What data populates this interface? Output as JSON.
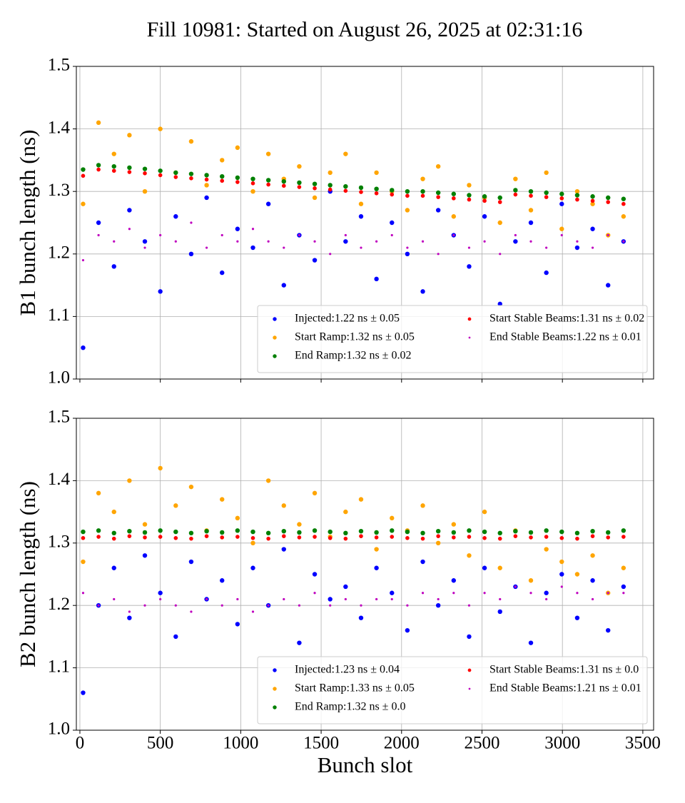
{
  "title": "Fill 10981: Started on August 26, 2025 at 02:31:16",
  "chart_data": [
    {
      "type": "scatter",
      "ylabel": "B1 bunch length (ns)",
      "xlim": [
        -22,
        3567
      ],
      "ylim": [
        1.0,
        1.5
      ],
      "xticks": [
        0,
        500,
        1000,
        1500,
        2000,
        2500,
        3000,
        3500
      ],
      "yticks": [
        {
          "value": 1.0,
          "label": "1.0"
        },
        1.1,
        1.2,
        1.3,
        1.4,
        1.5
      ],
      "grid": true,
      "legend": "lower right",
      "legend_columns": 2,
      "x": [
        20,
        116,
        212,
        308,
        404,
        500,
        596,
        692,
        788,
        884,
        980,
        1076,
        1172,
        1268,
        1364,
        1460,
        1556,
        1652,
        1748,
        1844,
        1940,
        2036,
        2132,
        2228,
        2324,
        2420,
        2516,
        2612,
        2708,
        2804,
        2900,
        2996,
        3092,
        3188,
        3284,
        3380
      ],
      "series": [
        {
          "name": "Injected:1.22 ns ± 0.05",
          "color": "#0000ff",
          "marker_size": 3.2,
          "values": [
            1.05,
            1.25,
            1.18,
            1.27,
            1.22,
            1.14,
            1.26,
            1.2,
            1.29,
            1.17,
            1.24,
            1.21,
            1.28,
            1.15,
            1.23,
            1.19,
            1.3,
            1.22,
            1.26,
            1.16,
            1.25,
            1.2,
            1.14,
            1.27,
            1.23,
            1.18,
            1.26,
            1.12,
            1.22,
            1.25,
            1.17,
            1.28,
            1.21,
            1.24,
            1.15,
            1.22
          ]
        },
        {
          "name": "Start Ramp:1.32 ns ± 0.05",
          "color": "#ffa500",
          "marker_size": 3.2,
          "values": [
            1.28,
            1.41,
            1.36,
            1.39,
            1.3,
            1.4,
            1.33,
            1.38,
            1.31,
            1.35,
            1.37,
            1.3,
            1.36,
            1.32,
            1.34,
            1.29,
            1.33,
            1.36,
            1.28,
            1.33,
            1.3,
            1.27,
            1.32,
            1.34,
            1.26,
            1.31,
            1.29,
            1.25,
            1.32,
            1.27,
            1.33,
            1.24,
            1.3,
            1.28,
            1.23,
            1.26
          ]
        },
        {
          "name": "End Ramp:1.32 ns ± 0.02",
          "color": "#008000",
          "marker_size": 3.2,
          "values": [
            1.335,
            1.342,
            1.34,
            1.338,
            1.336,
            1.333,
            1.33,
            1.328,
            1.326,
            1.324,
            1.322,
            1.32,
            1.318,
            1.316,
            1.314,
            1.312,
            1.31,
            1.308,
            1.306,
            1.304,
            1.302,
            1.3,
            1.3,
            1.298,
            1.296,
            1.294,
            1.292,
            1.29,
            1.302,
            1.3,
            1.298,
            1.296,
            1.294,
            1.292,
            1.29,
            1.288
          ]
        },
        {
          "name": "Start Stable Beams:1.31 ns ± 0.02",
          "color": "#ff0000",
          "marker_size": 2.8,
          "values": [
            1.325,
            1.335,
            1.333,
            1.331,
            1.329,
            1.326,
            1.323,
            1.321,
            1.319,
            1.317,
            1.315,
            1.313,
            1.311,
            1.309,
            1.307,
            1.305,
            1.303,
            1.301,
            1.299,
            1.297,
            1.295,
            1.293,
            1.293,
            1.291,
            1.289,
            1.287,
            1.285,
            1.283,
            1.295,
            1.293,
            1.291,
            1.289,
            1.287,
            1.285,
            1.283,
            1.28
          ]
        },
        {
          "name": "End Stable Beams:1.22 ns ± 0.01",
          "color": "#bf00bf",
          "marker_size": 1.6,
          "values": [
            1.19,
            1.23,
            1.22,
            1.24,
            1.21,
            1.23,
            1.22,
            1.25,
            1.21,
            1.23,
            1.22,
            1.24,
            1.22,
            1.21,
            1.23,
            1.22,
            1.2,
            1.23,
            1.21,
            1.22,
            1.23,
            1.21,
            1.22,
            1.2,
            1.23,
            1.21,
            1.22,
            1.2,
            1.23,
            1.22,
            1.21,
            1.23,
            1.22,
            1.21,
            1.23,
            1.22
          ]
        }
      ]
    },
    {
      "type": "scatter",
      "ylabel": "B2 bunch length (ns)",
      "xlabel": "Bunch slot",
      "xlim": [
        -22,
        3567
      ],
      "ylim": [
        1.0,
        1.5
      ],
      "xticks": [
        0,
        500,
        1000,
        1500,
        2000,
        2500,
        3000,
        3500
      ],
      "yticks": [
        {
          "value": 1.0,
          "label": "1.0"
        },
        1.1,
        1.2,
        1.3,
        1.4,
        1.5
      ],
      "grid": true,
      "legend": "lower right",
      "legend_columns": 2,
      "x": [
        20,
        116,
        212,
        308,
        404,
        500,
        596,
        692,
        788,
        884,
        980,
        1076,
        1172,
        1268,
        1364,
        1460,
        1556,
        1652,
        1748,
        1844,
        1940,
        2036,
        2132,
        2228,
        2324,
        2420,
        2516,
        2612,
        2708,
        2804,
        2900,
        2996,
        3092,
        3188,
        3284,
        3380
      ],
      "series": [
        {
          "name": "Injected:1.23 ns ± 0.04",
          "color": "#0000ff",
          "marker_size": 3.2,
          "values": [
            1.06,
            1.2,
            1.26,
            1.18,
            1.28,
            1.22,
            1.15,
            1.27,
            1.21,
            1.24,
            1.17,
            1.26,
            1.2,
            1.29,
            1.14,
            1.25,
            1.21,
            1.23,
            1.18,
            1.26,
            1.22,
            1.16,
            1.27,
            1.2,
            1.24,
            1.15,
            1.26,
            1.19,
            1.23,
            1.14,
            1.22,
            1.25,
            1.18,
            1.24,
            1.16,
            1.23
          ]
        },
        {
          "name": "Start Ramp:1.33 ns ± 0.05",
          "color": "#ffa500",
          "marker_size": 3.2,
          "values": [
            1.27,
            1.38,
            1.35,
            1.4,
            1.33,
            1.42,
            1.36,
            1.39,
            1.32,
            1.37,
            1.34,
            1.3,
            1.4,
            1.36,
            1.33,
            1.38,
            1.31,
            1.35,
            1.37,
            1.29,
            1.34,
            1.32,
            1.36,
            1.3,
            1.33,
            1.28,
            1.35,
            1.26,
            1.32,
            1.24,
            1.29,
            1.27,
            1.25,
            1.28,
            1.22,
            1.26
          ]
        },
        {
          "name": "End Ramp:1.32 ns ± 0.0",
          "color": "#008000",
          "marker_size": 3.2,
          "values": [
            1.318,
            1.32,
            1.316,
            1.319,
            1.317,
            1.32,
            1.318,
            1.316,
            1.319,
            1.317,
            1.32,
            1.318,
            1.316,
            1.319,
            1.317,
            1.32,
            1.318,
            1.316,
            1.319,
            1.317,
            1.32,
            1.318,
            1.316,
            1.319,
            1.317,
            1.32,
            1.318,
            1.316,
            1.319,
            1.317,
            1.32,
            1.318,
            1.316,
            1.319,
            1.317,
            1.32
          ]
        },
        {
          "name": "Start Stable Beams:1.31 ns ± 0.0",
          "color": "#ff0000",
          "marker_size": 2.8,
          "values": [
            1.308,
            1.31,
            1.307,
            1.311,
            1.309,
            1.31,
            1.308,
            1.307,
            1.311,
            1.309,
            1.31,
            1.308,
            1.307,
            1.311,
            1.309,
            1.31,
            1.308,
            1.307,
            1.311,
            1.309,
            1.31,
            1.308,
            1.307,
            1.311,
            1.309,
            1.31,
            1.308,
            1.307,
            1.311,
            1.309,
            1.31,
            1.308,
            1.307,
            1.311,
            1.309,
            1.31
          ]
        },
        {
          "name": "End Stable Beams:1.21 ns ± 0.01",
          "color": "#bf00bf",
          "marker_size": 1.6,
          "values": [
            1.22,
            1.2,
            1.21,
            1.19,
            1.2,
            1.21,
            1.2,
            1.19,
            1.21,
            1.2,
            1.21,
            1.19,
            1.2,
            1.21,
            1.2,
            1.22,
            1.2,
            1.21,
            1.2,
            1.21,
            1.21,
            1.2,
            1.22,
            1.21,
            1.22,
            1.2,
            1.22,
            1.21,
            1.23,
            1.22,
            1.21,
            1.23,
            1.22,
            1.21,
            1.22,
            1.22
          ]
        }
      ]
    }
  ]
}
